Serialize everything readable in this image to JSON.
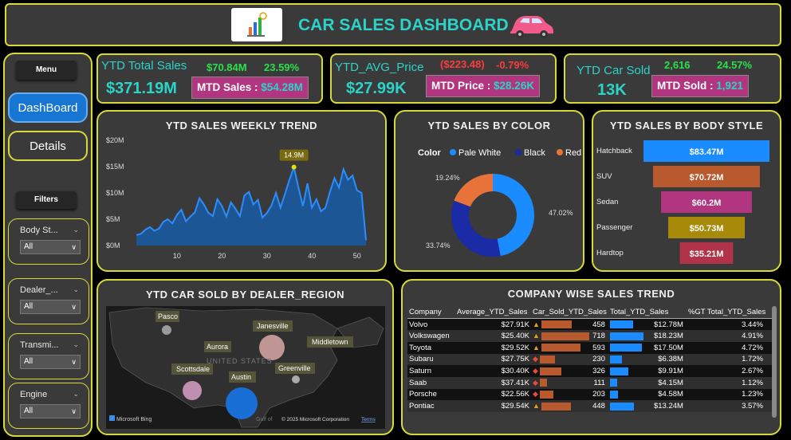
{
  "header": {
    "title": "CAR SALES DASHBOARD"
  },
  "sidebar": {
    "menu_label": "Menu",
    "nav": [
      {
        "label": "DashBoard",
        "active": true
      },
      {
        "label": "Details",
        "active": false
      }
    ],
    "filters_label": "Filters",
    "filters": [
      {
        "name": "Body St...",
        "value": "All"
      },
      {
        "name": "Dealer_...",
        "value": "All"
      },
      {
        "name": "Transmi...",
        "value": "All"
      },
      {
        "name": "Engine",
        "value": "All"
      }
    ]
  },
  "kpis": {
    "sales": {
      "title": "YTD Total Sales",
      "value": "$371.19M",
      "delta_value": "$70.84M",
      "delta_pct": "23.59%",
      "mtd_label": "MTD Sales :",
      "mtd_value": "$54.28M"
    },
    "price": {
      "title": "YTD_AVG_Price",
      "value": "$27.99K",
      "delta_value": "($223.48)",
      "delta_pct": "-0.79%",
      "mtd_label": "MTD Price :",
      "mtd_value": "$28.26K"
    },
    "sold": {
      "title": "YTD Car Sold",
      "value": "13K",
      "delta_value": "2,616",
      "delta_pct": "24.57%",
      "mtd_label": "MTD Sold :",
      "mtd_value": "1,921"
    }
  },
  "weekly_trend": {
    "title": "YTD SALES WEEKLY TREND",
    "peak_label": "14.9M",
    "chart_data": {
      "type": "area",
      "x": [
        1,
        2,
        3,
        4,
        5,
        6,
        7,
        8,
        9,
        10,
        11,
        12,
        13,
        14,
        15,
        16,
        17,
        18,
        19,
        20,
        21,
        22,
        23,
        24,
        25,
        26,
        27,
        28,
        29,
        30,
        31,
        32,
        33,
        34,
        35,
        36,
        37,
        38,
        39,
        40,
        41,
        42,
        43,
        44,
        45,
        46,
        47,
        48,
        49,
        50,
        51,
        52
      ],
      "values": [
        2.0,
        2.2,
        3.0,
        3.5,
        2.8,
        3.2,
        4.5,
        5.0,
        4.2,
        5.8,
        6.8,
        4.6,
        5.5,
        6.3,
        9.0,
        7.8,
        6.2,
        5.6,
        8.8,
        7.5,
        5.5,
        8.2,
        7.0,
        5.6,
        9.5,
        10.2,
        7.8,
        8.7,
        5.3,
        6.2,
        7.6,
        10.0,
        7.2,
        9.8,
        12.5,
        14.9,
        11.0,
        7.5,
        11.8,
        7.2,
        8.8,
        6.5,
        7.2,
        10.2,
        12.8,
        11.0,
        14.5,
        12.5,
        13.3,
        10.5,
        10.0,
        1.0
      ],
      "y_ticks": [
        "$0M",
        "$5M",
        "$10M",
        "$15M",
        "$20M"
      ],
      "x_ticks": [
        "10",
        "20",
        "30",
        "40",
        "50"
      ],
      "ylim": [
        0,
        20
      ]
    }
  },
  "color_donut": {
    "title": "YTD SALES BY COLOR",
    "legend_title": "Color",
    "chart_data": {
      "type": "pie",
      "categories": [
        "Pale White",
        "Black",
        "Red"
      ],
      "values": [
        47.02,
        33.74,
        19.24
      ],
      "labels": [
        "47.02%",
        "33.74%",
        "19.24%"
      ],
      "colors": [
        "#1a8cff",
        "#1b2aa5",
        "#e8733a"
      ]
    }
  },
  "body_style": {
    "title": "YTD SALES BY BODY STYLE",
    "chart_data": {
      "type": "bar",
      "categories": [
        "Hatchback",
        "SUV",
        "Sedan",
        "Passenger",
        "Hardtop"
      ],
      "values": [
        83.47,
        70.72,
        60.2,
        50.73,
        35.21
      ],
      "labels": [
        "$83.47M",
        "$70.72M",
        "$60.2M",
        "$50.73M",
        "$35.21M"
      ],
      "colors": [
        "#1a8cff",
        "#b85a2e",
        "#b1357f",
        "#a88a0a",
        "#b0334a"
      ]
    }
  },
  "map": {
    "title": "YTD CAR SOLD  BY DEALER_REGION",
    "country_label": "UNITED STATES",
    "gulf_label": "Gulf of",
    "bing_label": "Microsoft Bing",
    "copyright": "© 2025 Microsoft Corporation",
    "terms": "Terms",
    "cities": [
      "Pasco",
      "Janesville",
      "Aurora",
      "Middletown",
      "Scottsdale",
      "Austin",
      "Greenville"
    ]
  },
  "company_table": {
    "title": "COMPANY WISE SALES TREND",
    "columns": [
      "Company",
      "Average_YTD_Sales",
      "Car_Sold_YTD_Sales",
      "Total_YTD_Sales",
      "%GT Total_YTD_Sales"
    ],
    "rows": [
      {
        "company": "Volvo",
        "avg": "$27.91K",
        "sold": "458",
        "total": "$12.78M",
        "pct": "3.44%"
      },
      {
        "company": "Volkswagen",
        "avg": "$25.40K",
        "sold": "718",
        "total": "$18.23M",
        "pct": "4.91%"
      },
      {
        "company": "Toyota",
        "avg": "$29.52K",
        "sold": "593",
        "total": "$17.50M",
        "pct": "4.72%"
      },
      {
        "company": "Subaru",
        "avg": "$27.75K",
        "sold": "230",
        "total": "$6.38M",
        "pct": "1.72%"
      },
      {
        "company": "Saturn",
        "avg": "$30.40K",
        "sold": "326",
        "total": "$9.91M",
        "pct": "2.67%"
      },
      {
        "company": "Saab",
        "avg": "$37.41K",
        "sold": "111",
        "total": "$4.15M",
        "pct": "1.12%"
      },
      {
        "company": "Porsche",
        "avg": "$22.56K",
        "sold": "203",
        "total": "$4.58M",
        "pct": "1.23%"
      },
      {
        "company": "Pontiac",
        "avg": "$29.54K",
        "sold": "448",
        "total": "$13.24M",
        "pct": "3.57%"
      }
    ]
  }
}
